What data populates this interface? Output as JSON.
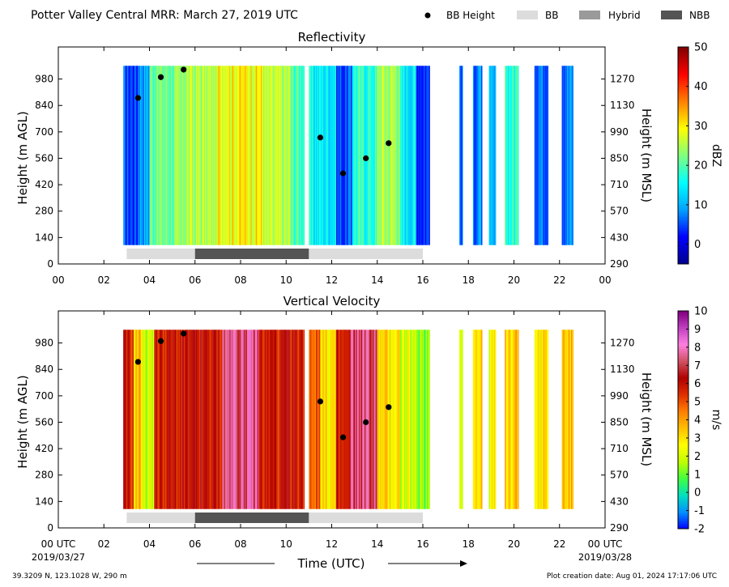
{
  "header": {
    "title": "Potter Valley Central MRR:  March 27, 2019 UTC",
    "legend": [
      {
        "label": "BB Height",
        "kind": "dot",
        "color": "#000000"
      },
      {
        "label": "BB",
        "kind": "swatch",
        "color": "#dcdcdc"
      },
      {
        "label": "Hybrid",
        "kind": "swatch",
        "color": "#9a9a9a"
      },
      {
        "label": "NBB",
        "kind": "swatch",
        "color": "#545454"
      }
    ]
  },
  "footer": {
    "location": "39.3209 N, 123.1028 W, 290 m",
    "created": "Plot creation date: Aug 01, 2024 17:17:06 UTC",
    "date_left": "2019/03/27",
    "date_right": "2019/03/28"
  },
  "chart_data": [
    {
      "type": "heatmap",
      "title": "Reflectivity",
      "xlabel": "",
      "ylabel": "Height (m AGL)",
      "y2label": "Height (m MSL)",
      "colorbar_label": "dBZ",
      "x_ticks": [
        "00",
        "02",
        "04",
        "06",
        "08",
        "10",
        "12",
        "14",
        "16",
        "18",
        "20",
        "22",
        "00"
      ],
      "xlim": [
        0,
        24
      ],
      "ylim": [
        0,
        1150
      ],
      "y_ticks": [
        0,
        140,
        280,
        420,
        560,
        700,
        840,
        980
      ],
      "y2_ticks": [
        290,
        430,
        570,
        710,
        850,
        990,
        1130,
        1270
      ],
      "colorbar": {
        "min": -5,
        "max": 50,
        "ticks": [
          0,
          10,
          20,
          30,
          40,
          50
        ],
        "colors": [
          "#00008f",
          "#0000ff",
          "#00a0ff",
          "#00ffff",
          "#7fff7f",
          "#ffff00",
          "#ff8000",
          "#ff0000",
          "#800000"
        ]
      },
      "data_height_range": [
        100,
        1050
      ],
      "data_segments": [
        {
          "start": 2.85,
          "end": 3.5,
          "value": 5
        },
        {
          "start": 3.5,
          "end": 4.0,
          "value": 10
        },
        {
          "start": 4.0,
          "end": 5.5,
          "value": 22
        },
        {
          "start": 5.5,
          "end": 7.0,
          "value": 25
        },
        {
          "start": 7.0,
          "end": 9.0,
          "value": 30
        },
        {
          "start": 9.0,
          "end": 10.2,
          "value": 25
        },
        {
          "start": 10.2,
          "end": 10.8,
          "value": 20
        },
        {
          "start": 11.0,
          "end": 12.2,
          "value": 15
        },
        {
          "start": 12.2,
          "end": 12.9,
          "value": 5
        },
        {
          "start": 12.9,
          "end": 14.0,
          "value": 18
        },
        {
          "start": 14.0,
          "end": 15.0,
          "value": 25
        },
        {
          "start": 15.0,
          "end": 15.7,
          "value": 15
        },
        {
          "start": 15.7,
          "end": 16.3,
          "value": 5
        },
        {
          "start": 17.6,
          "end": 17.75,
          "value": 5
        },
        {
          "start": 18.2,
          "end": 18.6,
          "value": 8
        },
        {
          "start": 18.9,
          "end": 19.2,
          "value": 8
        },
        {
          "start": 19.6,
          "end": 20.2,
          "value": 18
        },
        {
          "start": 20.9,
          "end": 21.5,
          "value": 8
        },
        {
          "start": 22.1,
          "end": 22.6,
          "value": 8
        }
      ],
      "bb_height": [
        {
          "x": 3.5,
          "y": 880
        },
        {
          "x": 4.5,
          "y": 990
        },
        {
          "x": 5.5,
          "y": 1030
        },
        {
          "x": 11.5,
          "y": 670
        },
        {
          "x": 12.5,
          "y": 480
        },
        {
          "x": 13.5,
          "y": 560
        },
        {
          "x": 14.5,
          "y": 640
        }
      ],
      "bb_type_bar": [
        {
          "start": 3.0,
          "end": 6.0,
          "category": "BB"
        },
        {
          "start": 6.0,
          "end": 11.0,
          "category": "NBB"
        },
        {
          "start": 11.0,
          "end": 16.0,
          "category": "BB"
        }
      ]
    },
    {
      "type": "heatmap",
      "title": "Vertical Velocity",
      "xlabel": "Time (UTC)",
      "ylabel": "Height (m AGL)",
      "y2label": "Height (m MSL)",
      "colorbar_label": "m/s",
      "x_ticks": [
        "00 UTC",
        "02",
        "04",
        "06",
        "08",
        "10",
        "12",
        "14",
        "16",
        "18",
        "20",
        "22",
        "00 UTC"
      ],
      "xlim": [
        0,
        24
      ],
      "ylim": [
        0,
        1150
      ],
      "y_ticks": [
        0,
        140,
        280,
        420,
        560,
        700,
        840,
        980
      ],
      "y2_ticks": [
        290,
        430,
        570,
        710,
        850,
        990,
        1130,
        1270
      ],
      "colorbar": {
        "min": -2,
        "max": 10,
        "ticks": [
          -2,
          -1,
          0,
          1,
          2,
          3,
          4,
          5,
          6,
          7,
          8,
          9,
          10
        ],
        "colors": [
          "#0000ff",
          "#0090ff",
          "#00e0c0",
          "#40ff40",
          "#c0ff00",
          "#ffff00",
          "#ffc000",
          "#ff8000",
          "#e03000",
          "#b00000",
          "#d05060",
          "#ff80e0",
          "#c040c0",
          "#800080"
        ]
      },
      "data_height_range": [
        100,
        1050
      ],
      "data_segments": [
        {
          "start": 2.85,
          "end": 3.3,
          "value": 5.6
        },
        {
          "start": 3.3,
          "end": 3.7,
          "value": 3.5
        },
        {
          "start": 3.7,
          "end": 4.2,
          "value": 2
        },
        {
          "start": 4.2,
          "end": 6.0,
          "value": 5.8
        },
        {
          "start": 6.0,
          "end": 7.2,
          "value": 5.9
        },
        {
          "start": 7.2,
          "end": 8.8,
          "value": 7.5
        },
        {
          "start": 8.8,
          "end": 10.8,
          "value": 5.8
        },
        {
          "start": 11.0,
          "end": 11.5,
          "value": 5
        },
        {
          "start": 11.5,
          "end": 12.2,
          "value": 3
        },
        {
          "start": 12.2,
          "end": 12.8,
          "value": 5.5
        },
        {
          "start": 12.8,
          "end": 14.0,
          "value": 7.3
        },
        {
          "start": 14.0,
          "end": 15.0,
          "value": 3
        },
        {
          "start": 15.0,
          "end": 15.5,
          "value": 2
        },
        {
          "start": 15.5,
          "end": 16.3,
          "value": 1.5
        },
        {
          "start": 17.6,
          "end": 17.75,
          "value": 2.5
        },
        {
          "start": 18.2,
          "end": 18.6,
          "value": 3
        },
        {
          "start": 18.9,
          "end": 19.2,
          "value": 2.5
        },
        {
          "start": 19.6,
          "end": 20.2,
          "value": 3.5
        },
        {
          "start": 20.9,
          "end": 21.5,
          "value": 3
        },
        {
          "start": 22.1,
          "end": 22.6,
          "value": 3.5
        }
      ],
      "bb_height": [
        {
          "x": 3.5,
          "y": 880
        },
        {
          "x": 4.5,
          "y": 990
        },
        {
          "x": 5.5,
          "y": 1030
        },
        {
          "x": 11.5,
          "y": 670
        },
        {
          "x": 12.5,
          "y": 480
        },
        {
          "x": 13.5,
          "y": 560
        },
        {
          "x": 14.5,
          "y": 640
        }
      ],
      "bb_type_bar": [
        {
          "start": 3.0,
          "end": 6.0,
          "category": "BB"
        },
        {
          "start": 6.0,
          "end": 11.0,
          "category": "NBB"
        },
        {
          "start": 11.0,
          "end": 16.0,
          "category": "BB"
        }
      ]
    }
  ]
}
